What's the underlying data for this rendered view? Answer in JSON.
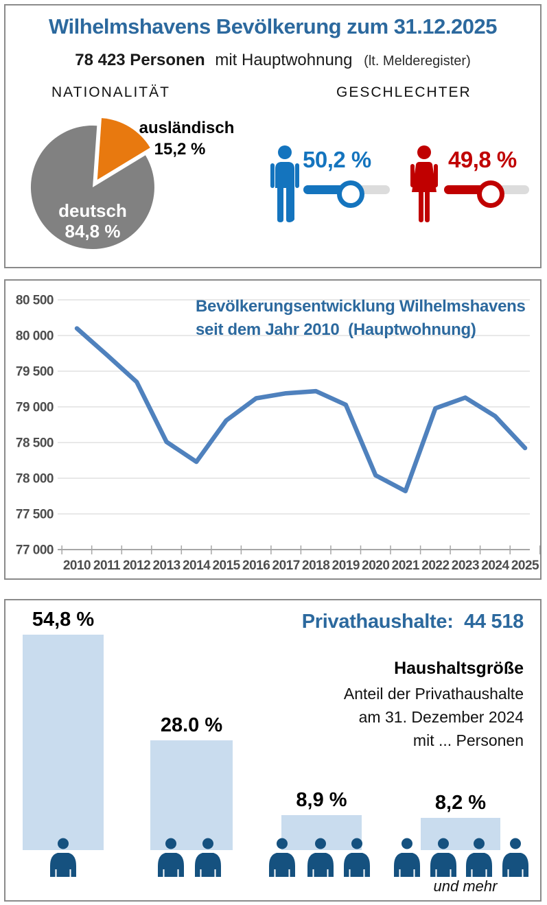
{
  "colors": {
    "title_blue": "#2c699e",
    "line_blue": "#4f81bd",
    "male_blue": "#1474be",
    "female_red": "#c00000",
    "pie_gray": "#818181",
    "pie_orange": "#e8790f",
    "bar_lightblue": "#c9dcee",
    "person_darkblue": "#15517f",
    "track_gray": "#dcdcdc",
    "axis_text": "#4d4d4d"
  },
  "panel_population": {
    "title": "Wilhelmshavens Bevölkerung zum 31.12.2025",
    "persons_bold": "78 423 Personen",
    "persons_label": "mit Hauptwohnung",
    "persons_note": "(lt. Melderegister)",
    "nationality_heading": "NATIONALITÄT",
    "gender_heading": "GESCHLECHTER",
    "pie_inner_label": "deutsch",
    "pie_inner_value": "84,8 %",
    "pie_outer_label": "ausländisch",
    "pie_outer_value": "15,2 %",
    "male_pct": "50,2 %",
    "female_pct": "49,8 %"
  },
  "panel_trend": {
    "title_line1": "Bevölkerungsentwicklung Wilhelmshavens",
    "title_line2": "seit dem Jahr 2010  (Hauptwohnung)"
  },
  "panel_households": {
    "title": "Privathaushalte:  44 518",
    "heading": "Haushaltsgröße",
    "desc_line1": "Anteil der Privathaushalte",
    "desc_line2": "am 31. Dezember 2024",
    "desc_line3": "mit ... Personen",
    "more_label": "und mehr",
    "bar_labels": [
      "54,8 %",
      "28.0 %",
      "8,9 %",
      "8,2 %"
    ]
  },
  "chart_data": [
    {
      "type": "pie",
      "title": "NATIONALITÄT",
      "slices": [
        {
          "label": "deutsch",
          "value": 84.8,
          "display": "84,8 %",
          "color": "#818181"
        },
        {
          "label": "ausländisch",
          "value": 15.2,
          "display": "15,2 %",
          "color": "#e8790f",
          "exploded": true
        }
      ],
      "legend_position": "none"
    },
    {
      "type": "line",
      "title": "Bevölkerungsentwicklung Wilhelmshavens seit dem Jahr 2010 (Hauptwohnung)",
      "x": [
        "2010",
        "2011",
        "2012",
        "2013",
        "2014",
        "2015",
        "2016",
        "2017",
        "2018",
        "2019",
        "2020",
        "2021",
        "2022",
        "2023",
        "2024",
        "2025"
      ],
      "y": [
        80100,
        79730,
        79350,
        78510,
        78230,
        78810,
        79120,
        79190,
        79220,
        79030,
        78040,
        77820,
        78980,
        79130,
        78870,
        78423
      ],
      "ylim": [
        77000,
        80500
      ],
      "ytick_step": 500,
      "ytick_values": [
        80500,
        80000,
        79500,
        79000,
        78500,
        78000,
        77500,
        77000
      ],
      "ytick_labels": [
        "80 500",
        "80 000",
        "79 500",
        "79 000",
        "78 500",
        "78 000",
        "77 500",
        "77 000"
      ],
      "grid": true,
      "line_color": "#4f81bd",
      "xlabel": "",
      "ylabel": ""
    },
    {
      "type": "bar",
      "title": "Haushaltsgröße — Anteil der Privathaushalte am 31. Dezember 2024 mit ... Personen",
      "categories": [
        "1 Person",
        "2 Personen",
        "3 Personen",
        "4 Personen und mehr"
      ],
      "values": [
        54.8,
        28.0,
        8.9,
        8.2
      ],
      "value_labels": [
        "54,8 %",
        "28.0 %",
        "8,9 %",
        "8,2 %"
      ],
      "persons_per_bar": [
        1,
        2,
        3,
        4
      ],
      "total": "44 518",
      "bar_color": "#c9dcee"
    }
  ]
}
